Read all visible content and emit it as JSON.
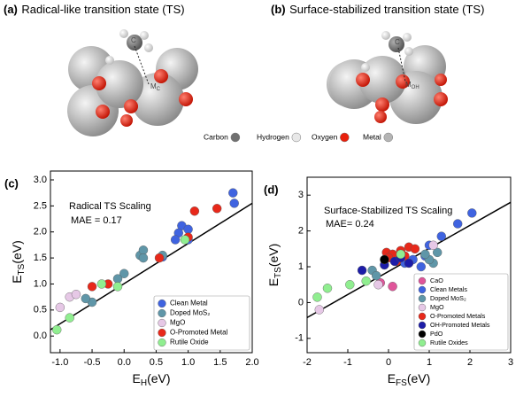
{
  "figure": {
    "panels": [
      {
        "label": "(a)",
        "title": "Radical-like transition state (TS)",
        "atom_label": "C",
        "metal_label": "M",
        "metal_sub": "C"
      },
      {
        "label": "(b)",
        "title": "Surface-stabilized transition state (TS)",
        "atom_label": "C",
        "metal_label": "M",
        "metal_sub": "OH"
      }
    ],
    "atom_legend": [
      {
        "name": "Carbon",
        "color": "#707070"
      },
      {
        "name": "Hydrogen",
        "color": "#e8e8e8"
      },
      {
        "name": "Oxygen",
        "color": "#e8200c"
      },
      {
        "name": "Metal",
        "color": "#b4b4b4"
      }
    ]
  },
  "chart_data": [
    {
      "type": "scatter",
      "panel_label": "(c)",
      "xlabel": {
        "text": "E",
        "sub": "H",
        "unit": "(eV)"
      },
      "ylabel": {
        "text": "E",
        "sub": "TS",
        "unit": "(eV)"
      },
      "annotations": [
        "Radical TS Scaling",
        "MAE = 0.17"
      ],
      "xlim": [
        -1.15,
        2.0
      ],
      "ylim": [
        -0.32,
        3.17
      ],
      "xticks": [
        {
          "value": -1,
          "label": "-1.0"
        },
        -0.5,
        {
          "value": 0,
          "label": "0.0"
        },
        0.5,
        {
          "value": 1,
          "label": "1.0"
        },
        1.5,
        {
          "value": 2,
          "label": "2.0"
        }
      ],
      "yticks": [
        {
          "value": 0,
          "label": "0.0"
        },
        0.5,
        {
          "value": 1,
          "label": "1.0"
        },
        1.5,
        {
          "value": 2,
          "label": "2.0"
        },
        2.5,
        {
          "value": 3,
          "label": "3.0"
        }
      ],
      "fit": {
        "x": [
          -1.15,
          2.0
        ],
        "y": [
          0.12,
          2.55
        ]
      },
      "legend": "lower right",
      "series": [
        {
          "name": "Clean Metal",
          "color": "#3f63e0",
          "x": [
            1.7,
            1.72,
            0.9,
            1.0,
            0.85,
            0.8,
            1.0,
            0.6
          ],
          "values": [
            2.75,
            2.55,
            2.12,
            2.05,
            1.98,
            1.85,
            1.85,
            1.52
          ]
        },
        {
          "name": "Doped MoS₂",
          "color": "#5f96a8",
          "x": [
            -0.5,
            -0.6,
            0.25,
            0.3,
            0.3,
            0.0,
            -0.1,
            0.6
          ],
          "values": [
            0.65,
            0.72,
            1.55,
            1.65,
            1.5,
            1.2,
            1.1,
            1.55
          ]
        },
        {
          "name": "MgO",
          "color": "#e6c8e6",
          "x": [
            -1.0,
            -0.85,
            -0.75
          ],
          "values": [
            0.55,
            0.75,
            0.8
          ]
        },
        {
          "name": "O-Promoted Metal",
          "color": "#e8281a",
          "x": [
            -0.5,
            -0.25,
            0.55,
            1.1,
            1.45,
            1.0
          ],
          "values": [
            0.95,
            1.0,
            1.5,
            2.4,
            2.45,
            1.9
          ]
        },
        {
          "name": "Rutile Oxide",
          "color": "#90ee90",
          "x": [
            -1.05,
            -0.85,
            -0.1,
            0.95,
            -0.35
          ],
          "values": [
            0.12,
            0.35,
            0.95,
            1.85,
            1.0
          ]
        }
      ]
    },
    {
      "type": "scatter",
      "panel_label": "(d)",
      "xlabel": {
        "text": "E",
        "sub": "FS",
        "unit": "(eV)"
      },
      "ylabel": {
        "text": "E",
        "sub": "TS",
        "unit": "(eV)"
      },
      "annotations": [
        "Surface-Stabilized TS Scaling",
        "MAE= 0.24"
      ],
      "xlim": [
        -2,
        3
      ],
      "ylim": [
        -1.4,
        3.5
      ],
      "xticks": [
        -2,
        -1,
        0,
        1,
        2,
        3
      ],
      "yticks": [
        -1,
        0,
        1,
        2,
        3
      ],
      "fit": {
        "x": [
          -2,
          3
        ],
        "y": [
          -0.42,
          2.8
        ]
      },
      "legend": "lower right",
      "series": [
        {
          "name": "CaO",
          "color": "#e0559a",
          "x": [
            -0.2,
            0.1
          ],
          "values": [
            0.55,
            0.45
          ]
        },
        {
          "name": "Clean Metals",
          "color": "#3f63e0",
          "x": [
            2.05,
            1.7,
            1.3,
            1.0,
            0.9,
            0.6,
            0.4,
            0.8
          ],
          "values": [
            2.5,
            2.2,
            1.85,
            1.6,
            1.3,
            1.2,
            1.1,
            1.0
          ]
        },
        {
          "name": "Doped MoS₂",
          "color": "#5f96a8",
          "x": [
            1.1,
            1.0,
            1.2,
            0.9,
            -0.4,
            -0.3
          ],
          "values": [
            1.1,
            1.2,
            1.4,
            1.35,
            0.9,
            0.75
          ]
        },
        {
          "name": "MgO",
          "color": "#e6c8e6",
          "x": [
            -1.7,
            -0.25,
            1.1
          ],
          "values": [
            -0.2,
            0.5,
            1.6
          ]
        },
        {
          "name": "O-Promoted Metals",
          "color": "#e8281a",
          "x": [
            -0.05,
            0.1,
            0.3,
            0.5,
            0.4,
            0.2,
            0.65,
            0.0
          ],
          "values": [
            1.4,
            1.35,
            1.45,
            1.55,
            1.3,
            1.15,
            1.5,
            1.25
          ]
        },
        {
          "name": "OH-Promoted Metals",
          "color": "#1c1ca8",
          "x": [
            -0.65,
            0.15,
            0.3,
            0.5,
            -0.1
          ],
          "values": [
            0.9,
            1.15,
            1.25,
            1.1,
            1.05
          ]
        },
        {
          "name": "PdO",
          "color": "#000000",
          "x": [
            -0.1
          ],
          "values": [
            1.2
          ]
        },
        {
          "name": "Rutile Oxides",
          "color": "#90ee90",
          "x": [
            -1.75,
            -1.5,
            -0.95,
            -0.55,
            0.3
          ],
          "values": [
            0.15,
            0.4,
            0.5,
            0.6,
            1.35
          ]
        }
      ]
    }
  ]
}
